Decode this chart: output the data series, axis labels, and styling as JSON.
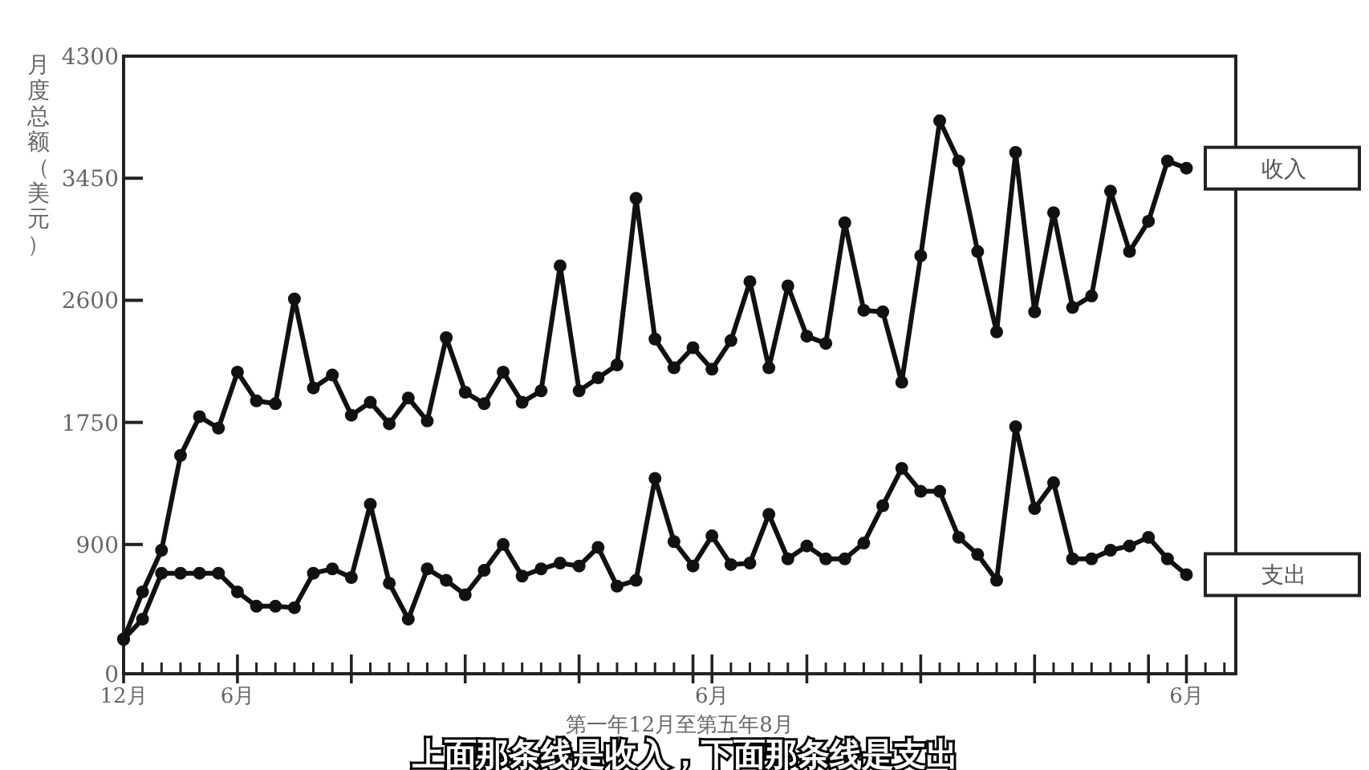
{
  "chart_data": {
    "type": "line",
    "ylabel": "月度总额（美元）",
    "xlabel": "第一年12月至第五年8月",
    "categories": [
      "12月",
      null,
      null,
      null,
      null,
      null,
      "6月",
      null,
      null,
      null,
      null,
      null,
      null,
      null,
      null,
      null,
      null,
      null,
      null,
      null,
      null,
      null,
      null,
      null,
      null,
      null,
      null,
      null,
      null,
      null,
      null,
      "6月",
      null,
      null,
      null,
      null,
      null,
      null,
      null,
      null,
      null,
      null,
      null,
      null,
      null,
      null,
      null,
      null,
      null,
      null,
      null,
      null,
      null,
      null,
      null,
      null,
      "6月"
    ],
    "series": [
      {
        "name": "收入",
        "color": "#111111",
        "values": [
          240,
          570,
          860,
          1520,
          1790,
          1710,
          2100,
          1900,
          1880,
          2610,
          1990,
          2080,
          1800,
          1890,
          1740,
          1920,
          1760,
          2340,
          1960,
          1880,
          2100,
          1890,
          1970,
          2840,
          1970,
          2060,
          2150,
          3310,
          2330,
          2130,
          2270,
          2120,
          2320,
          2730,
          2130,
          2700,
          2350,
          2300,
          3140,
          2530,
          2520,
          2030,
          2910,
          3850,
          3570,
          2940,
          2380,
          3630,
          2520,
          3210,
          2550,
          2630,
          3360,
          2940,
          3150,
          3570,
          3520
        ]
      },
      {
        "name": "支出",
        "color": "#111111",
        "values": [
          240,
          380,
          700,
          700,
          700,
          700,
          570,
          470,
          470,
          460,
          700,
          730,
          670,
          1180,
          630,
          380,
          730,
          650,
          550,
          720,
          900,
          680,
          730,
          770,
          750,
          880,
          610,
          650,
          1360,
          920,
          750,
          960,
          760,
          770,
          1110,
          800,
          890,
          800,
          800,
          910,
          1170,
          1430,
          1270,
          1270,
          950,
          830,
          650,
          1720,
          1150,
          1330,
          800,
          800,
          860,
          890,
          950,
          800,
          690
        ]
      }
    ],
    "ylim": [
      0,
      4300
    ],
    "yticks": [
      0,
      900,
      1750,
      2600,
      3450,
      4300
    ],
    "marker": "circle",
    "line_style": "solid",
    "grid": false,
    "legend": false,
    "annotations": [
      "上面那条线是收入，下面那条线是支出"
    ]
  }
}
